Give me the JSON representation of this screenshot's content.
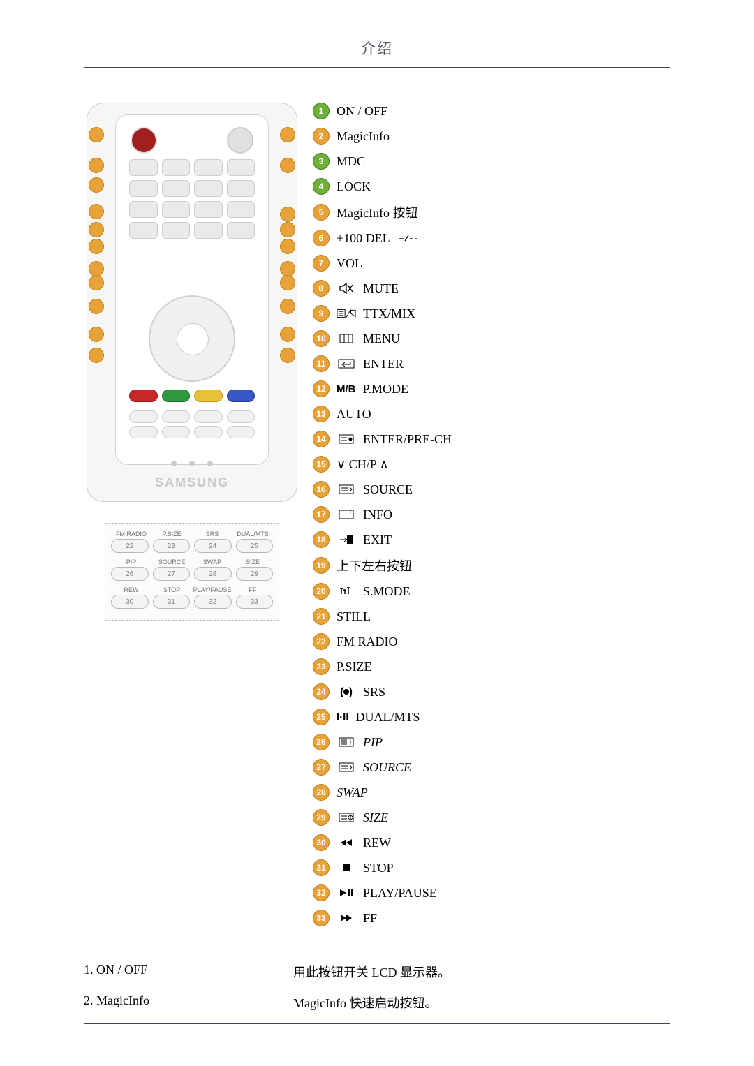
{
  "page_title": "介绍",
  "brand": "SAMSUNG",
  "colors": {
    "green": "#6fb03a",
    "green_border": "#3f7a15",
    "orange": "#e8a23a",
    "orange_border": "#c07f1a",
    "text": "#000000",
    "rule": "#444455"
  },
  "legend": [
    {
      "n": 1,
      "color": "green",
      "label": "ON / OFF",
      "icon": null
    },
    {
      "n": 2,
      "color": "orange",
      "label": "MagicInfo",
      "icon": null
    },
    {
      "n": 3,
      "color": "green",
      "label": "MDC",
      "icon": null
    },
    {
      "n": 4,
      "color": "green",
      "label": "LOCK",
      "icon": null
    },
    {
      "n": 5,
      "color": "orange",
      "label": "MagicInfo 按钮",
      "icon": null
    },
    {
      "n": 6,
      "color": "orange",
      "label": "+100 DEL",
      "icon": "dash-slash"
    },
    {
      "n": 7,
      "color": "orange",
      "label": "VOL",
      "icon": null
    },
    {
      "n": 8,
      "color": "orange",
      "label": "MUTE",
      "icon": "mute"
    },
    {
      "n": 9,
      "color": "orange",
      "label": "TTX/MIX",
      "icon": "ttx"
    },
    {
      "n": 10,
      "color": "orange",
      "label": "MENU",
      "icon": "menu-bars"
    },
    {
      "n": 11,
      "color": "orange",
      "label": "ENTER",
      "icon": "enter"
    },
    {
      "n": 12,
      "color": "orange",
      "label": "P.MODE",
      "icon_text": "M/B"
    },
    {
      "n": 13,
      "color": "orange",
      "label": "AUTO",
      "icon": null
    },
    {
      "n": 14,
      "color": "orange",
      "label": "ENTER/PRE-CH",
      "icon": "pre-ch"
    },
    {
      "n": 15,
      "color": "orange",
      "label": "CH/P",
      "icon": "updown"
    },
    {
      "n": 16,
      "color": "orange",
      "label": "SOURCE",
      "icon": "source"
    },
    {
      "n": 17,
      "color": "orange",
      "label": "INFO",
      "icon": "info"
    },
    {
      "n": 18,
      "color": "orange",
      "label": "EXIT",
      "icon": "exit"
    },
    {
      "n": 19,
      "color": "orange",
      "label": "上下左右按钮",
      "icon": null
    },
    {
      "n": 20,
      "color": "orange",
      "label": "S.MODE",
      "icon": "smode"
    },
    {
      "n": 21,
      "color": "orange",
      "label": "STILL",
      "icon": null
    },
    {
      "n": 22,
      "color": "orange",
      "label": "FM RADIO",
      "icon": null
    },
    {
      "n": 23,
      "color": "orange",
      "label": "P.SIZE",
      "icon": null
    },
    {
      "n": 24,
      "color": "orange",
      "label": "SRS",
      "icon": "srs"
    },
    {
      "n": 25,
      "color": "orange",
      "label": "DUAL/MTS",
      "icon_text": "I·II"
    },
    {
      "n": 26,
      "color": "orange",
      "label": "PIP",
      "icon": "list-i",
      "italic": true
    },
    {
      "n": 27,
      "color": "orange",
      "label": "SOURCE",
      "icon": "source",
      "italic": true
    },
    {
      "n": 28,
      "color": "orange",
      "label": "SWAP",
      "icon": null,
      "italic": true
    },
    {
      "n": 29,
      "color": "orange",
      "label": "SIZE",
      "icon": "size",
      "italic": true
    },
    {
      "n": 30,
      "color": "orange",
      "label": "REW",
      "icon": "rew"
    },
    {
      "n": 31,
      "color": "orange",
      "label": "STOP",
      "icon": "stop"
    },
    {
      "n": 32,
      "color": "orange",
      "label": "PLAY/PAUSE",
      "icon": "playpause"
    },
    {
      "n": 33,
      "color": "orange",
      "label": "FF",
      "icon": "ff"
    }
  ],
  "extra_block": {
    "rows": [
      {
        "labels": [
          "FM RADIO",
          "P.SIZE",
          "SRS",
          "DUAL/MTS"
        ],
        "nums": [
          "22",
          "23",
          "24",
          "25"
        ]
      },
      {
        "labels": [
          "PIP",
          "SOURCE",
          "SWAP",
          "SIZE"
        ],
        "nums": [
          "26",
          "27",
          "28",
          "29"
        ]
      },
      {
        "labels": [
          "REW",
          "STOP",
          "PLAY/PAUSE",
          "FF"
        ],
        "nums": [
          "30",
          "31",
          "32",
          "33"
        ]
      }
    ]
  },
  "definitions": [
    {
      "term": "1. ON / OFF",
      "desc": "用此按钮开关 LCD 显示器。"
    },
    {
      "term": "2. MagicInfo",
      "desc": "MagicInfo 快速启动按钮。"
    }
  ]
}
